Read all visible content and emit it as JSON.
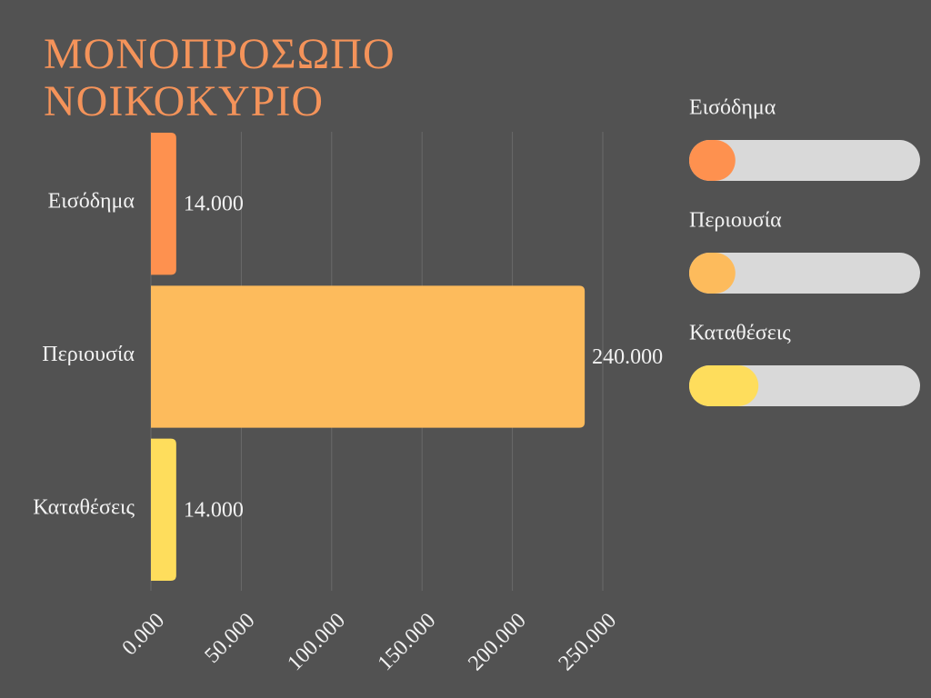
{
  "chart_data": {
    "type": "bar",
    "orientation": "horizontal",
    "title": "ΜΟΝΟΠΡΟΣΩΠΟ ΝΟΙΚΟΚΥΡΙΟ",
    "categories": [
      "Εισόδημα",
      "Περιουσία",
      "Καταθέσεις"
    ],
    "values": [
      14000,
      240000,
      14000
    ],
    "value_labels": [
      "14.000",
      "240.000",
      "14.000"
    ],
    "colors": [
      "#fe914f",
      "#fdbb5c",
      "#fedd5c"
    ],
    "xlim": [
      0,
      250000
    ],
    "xticks": [
      {
        "value": 0,
        "label": "0.000"
      },
      {
        "value": 50000,
        "label": "50.000"
      },
      {
        "value": 100000,
        "label": "100.000"
      },
      {
        "value": 150000,
        "label": "150.000"
      },
      {
        "value": 200000,
        "label": "200.000"
      },
      {
        "value": 250000,
        "label": "250.000"
      }
    ],
    "grid": true,
    "progress": {
      "xlim": [
        0,
        100
      ],
      "track_color": "#d9d9d9",
      "items": [
        {
          "label": "Εισόδημα",
          "value": 20,
          "color": "#fe914f"
        },
        {
          "label": "Περιουσία",
          "value": 20,
          "color": "#fdbb5c"
        },
        {
          "label": "Καταθέσεις",
          "value": 30,
          "color": "#fedd5c"
        }
      ]
    }
  }
}
